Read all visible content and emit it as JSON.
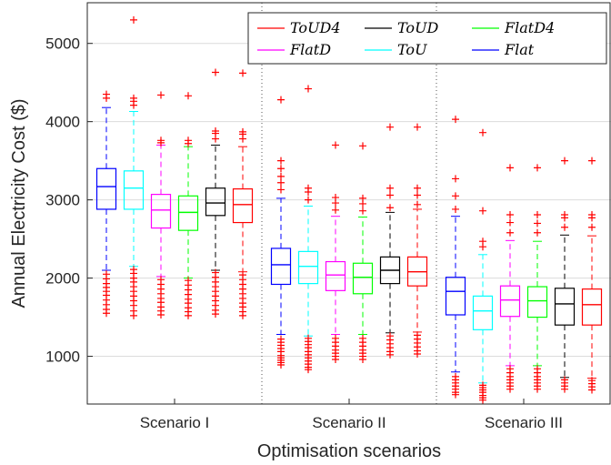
{
  "chart_data": {
    "type": "boxplot",
    "title": "",
    "xlabel": "Optimisation scenarios",
    "ylabel": "Annual Electricity Cost ($)",
    "ylim": [
      390,
      5520
    ],
    "yticks": [
      1000,
      2000,
      3000,
      4000,
      5000
    ],
    "grid": true,
    "legend_placement": "top-right",
    "outlier_color": "#ff0000",
    "categories": [
      "Scenario I",
      "Scenario II",
      "Scenario III"
    ],
    "series": [
      {
        "name": "Flat",
        "color": "#0000ff",
        "boxes": [
          {
            "q1": 2880,
            "median": 3170,
            "q3": 3400,
            "whisker_low": 2100,
            "whisker_high": 4180,
            "outliers_high": [
              4300,
              4350
            ],
            "outliers_low": [
              2050,
              1990,
              1930,
              1880,
              1830,
              1780,
              1720,
              1660,
              1600,
              1550
            ]
          },
          {
            "q1": 1920,
            "median": 2170,
            "q3": 2380,
            "whisker_low": 1280,
            "whisker_high": 3020,
            "outliers_high": [
              3130,
              3220,
              3300,
              3400,
              3500,
              4280
            ],
            "outliers_low": [
              1220,
              1180,
              1140,
              1100,
              1060,
              1010,
              980,
              950,
              920,
              890
            ]
          },
          {
            "q1": 1530,
            "median": 1830,
            "q3": 2010,
            "whisker_low": 800,
            "whisker_high": 2790,
            "outliers_high": [
              2880,
              3050,
              3270,
              4030
            ],
            "outliers_low": [
              740,
              700,
              660,
              620,
              580,
              540,
              510
            ]
          }
        ]
      },
      {
        "name": "ToU",
        "color": "#00ffff",
        "boxes": [
          {
            "q1": 2880,
            "median": 3150,
            "q3": 3370,
            "whisker_low": 2150,
            "whisker_high": 4130,
            "outliers_high": [
              4210,
              4260,
              4300,
              5300
            ],
            "outliers_low": [
              2110,
              2060,
              2000,
              1950,
              1890,
              1830,
              1770,
              1710,
              1650,
              1580,
              1520
            ]
          },
          {
            "q1": 1930,
            "median": 2150,
            "q3": 2340,
            "whisker_low": 1260,
            "whisker_high": 2920,
            "outliers_high": [
              3000,
              3100,
              3150,
              4420
            ],
            "outliers_low": [
              1230,
              1190,
              1150,
              1110,
              1060,
              1020,
              980,
              940,
              900,
              860,
              830
            ]
          },
          {
            "q1": 1340,
            "median": 1580,
            "q3": 1770,
            "whisker_low": 660,
            "whisker_high": 2300,
            "outliers_high": [
              2400,
              2470,
              2860,
              3860
            ],
            "outliers_low": [
              630,
              600,
              570,
              540,
              500,
              470,
              440
            ]
          }
        ]
      },
      {
        "name": "FlatD",
        "color": "#ff00ff",
        "boxes": [
          {
            "q1": 2640,
            "median": 2870,
            "q3": 3070,
            "whisker_low": 2020,
            "whisker_high": 3700,
            "outliers_high": [
              3730,
              3760,
              4340
            ],
            "outliers_low": [
              1980,
              1920,
              1860,
              1800,
              1740,
              1690,
              1630,
              1580,
              1530
            ]
          },
          {
            "q1": 1840,
            "median": 2040,
            "q3": 2210,
            "whisker_low": 1280,
            "whisker_high": 2790,
            "outliers_high": [
              2870,
              2960,
              3030,
              3700
            ],
            "outliers_low": [
              1230,
              1180,
              1130,
              1080,
              1040,
              1000,
              960
            ]
          },
          {
            "q1": 1510,
            "median": 1720,
            "q3": 1900,
            "whisker_low": 880,
            "whisker_high": 2480,
            "outliers_high": [
              2580,
              2710,
              2810,
              3410
            ],
            "outliers_low": [
              840,
              790,
              740,
              700,
              660,
              620,
              580
            ]
          }
        ]
      },
      {
        "name": "FlatD4",
        "color": "#00ff00",
        "boxes": [
          {
            "q1": 2610,
            "median": 2840,
            "q3": 3050,
            "whisker_low": 2000,
            "whisker_high": 3680,
            "outliers_high": [
              3720,
              3760,
              4330
            ],
            "outliers_low": [
              1970,
              1910,
              1850,
              1790,
              1730,
              1680,
              1620,
              1570,
              1520
            ]
          },
          {
            "q1": 1800,
            "median": 2010,
            "q3": 2190,
            "whisker_low": 1280,
            "whisker_high": 2780,
            "outliers_high": [
              2860,
              2950,
              3020,
              3690
            ],
            "outliers_low": [
              1230,
              1180,
              1130,
              1080,
              1040,
              1000,
              960
            ]
          },
          {
            "q1": 1500,
            "median": 1710,
            "q3": 1890,
            "whisker_low": 880,
            "whisker_high": 2470,
            "outliers_high": [
              2580,
              2700,
              2810,
              3410
            ],
            "outliers_low": [
              840,
              790,
              740,
              700,
              660,
              620,
              580
            ]
          }
        ]
      },
      {
        "name": "ToUD",
        "color": "#000000",
        "boxes": [
          {
            "q1": 2800,
            "median": 2960,
            "q3": 3150,
            "whisker_low": 2100,
            "whisker_high": 3700,
            "outliers_high": [
              3780,
              3850,
              3880,
              4630
            ],
            "outliers_low": [
              2070,
              2010,
              1950,
              1890,
              1830,
              1770,
              1710,
              1650,
              1590,
              1540
            ]
          },
          {
            "q1": 1930,
            "median": 2100,
            "q3": 2270,
            "whisker_low": 1300,
            "whisker_high": 2840,
            "outliers_high": [
              2900,
              3060,
              3150,
              3930
            ],
            "outliers_low": [
              1260,
              1210,
              1160,
              1110,
              1060,
              1020
            ]
          },
          {
            "q1": 1400,
            "median": 1670,
            "q3": 1870,
            "whisker_low": 730,
            "whisker_high": 2550,
            "outliers_high": [
              2650,
              2770,
              2810,
              3500
            ],
            "outliers_low": [
              700,
              660,
              620,
              580
            ]
          }
        ]
      },
      {
        "name": "ToUD4",
        "color": "#ff0000",
        "boxes": [
          {
            "q1": 2710,
            "median": 2940,
            "q3": 3140,
            "whisker_low": 2080,
            "whisker_high": 3680,
            "outliers_high": [
              3780,
              3840,
              3870,
              4620
            ],
            "outliers_low": [
              2040,
              1980,
              1920,
              1860,
              1800,
              1740,
              1680,
              1630,
              1570,
              1520
            ]
          },
          {
            "q1": 1900,
            "median": 2080,
            "q3": 2270,
            "whisker_low": 1310,
            "whisker_high": 2880,
            "outliers_high": [
              2940,
              3060,
              3150,
              3930
            ],
            "outliers_low": [
              1270,
              1220,
              1170,
              1120,
              1070,
              1030
            ]
          },
          {
            "q1": 1400,
            "median": 1660,
            "q3": 1860,
            "whisker_low": 720,
            "whisker_high": 2540,
            "outliers_high": [
              2650,
              2770,
              2810,
              3500
            ],
            "outliers_low": [
              690,
              650,
              610,
              570
            ]
          }
        ]
      }
    ],
    "legend_order": [
      "ToUD4",
      "ToUD",
      "FlatD4",
      "FlatD",
      "ToU",
      "Flat"
    ],
    "legend_labels": {
      "ToUD4": "ToUD4",
      "ToUD": "ToUD",
      "FlatD4": "FlatD4",
      "FlatD": "FlatD",
      "ToU": "ToU",
      "Flat": "Flat"
    }
  }
}
